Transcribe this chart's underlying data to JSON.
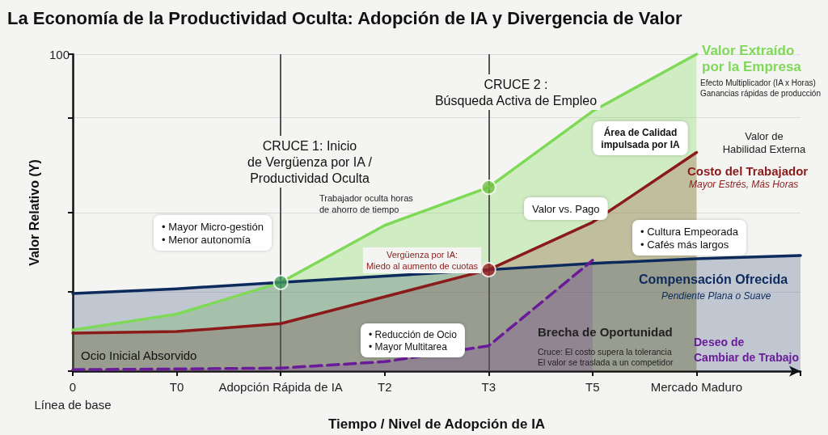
{
  "chart_data": {
    "type": "area",
    "title": "La Economía de la Productividad Oculta: Adopción de IA y Divergencia de Valor",
    "xlabel": "Tiempo / Nivel de Adopción de IA",
    "ylabel": "Valor Relativo (Y)",
    "categories": [
      "0\nLínea de base",
      "T0",
      "Adopción Rápida de IA",
      "T2",
      "T3",
      "T5",
      "Mercado Maduro",
      null
    ],
    "ylim": [
      0,
      100
    ],
    "yticks": [
      {
        "value": 0,
        "label": null
      },
      {
        "value": 25,
        "label": null
      },
      {
        "value": 50,
        "label": null
      },
      {
        "value": 80,
        "label": null
      },
      {
        "value": 100,
        "label": "100"
      }
    ],
    "grid": "y",
    "legend": false,
    "marker": "none",
    "series": [
      {
        "name": "Valor Extraído\npor la Empresa",
        "color": "#7ed957",
        "values": [
          13,
          18,
          28,
          46,
          58,
          82,
          100,
          null
        ]
      },
      {
        "name": "Costo del Trabajador",
        "color": "#8b1a1a",
        "values": [
          12,
          12.5,
          15,
          23.5,
          32,
          47,
          69,
          null
        ]
      },
      {
        "name": "Compensación Ofrecida",
        "color": "#0d2a5c",
        "values": [
          24.5,
          26,
          28,
          30,
          32,
          34,
          35.5,
          36.5
        ]
      },
      {
        "name": "Deseo de\nCambiar de Trabajo",
        "color": "#6a1b9a",
        "line_style": "dashed",
        "values": [
          0.5,
          0.7,
          1,
          3,
          8,
          35,
          null,
          null
        ]
      },
      {
        "type": "scatter",
        "marker": "circle",
        "x": [
          "Adopción Rápida de IA",
          "T3",
          "T3"
        ],
        "values": [
          28,
          58,
          32
        ],
        "colors": [
          "#3f9a5a",
          "#6fbf40",
          "#9b2020"
        ]
      }
    ],
    "ref_lines": [
      {
        "axis": "x",
        "value": "Adopción Rápida de IA",
        "color": "#555555"
      },
      {
        "axis": "x",
        "value": "T3",
        "color": "#555555"
      }
    ],
    "annotations": [
      "CRUCE 1: Inicio\nde Vergüenza por IA /\nProductividad Oculta",
      "CRUCE 2 :\nBúsqueda Activa de Empleo",
      "Trabajador oculta horas\nde ahorro de tiempo",
      "• Mayor Micro-gestión\n• Menor autonomía",
      "Vergüenza por IA:\nMiedo al aumento de cuotas",
      "Valor vs. Pago",
      "Área de Calidad\nimpulsada por IA",
      "Valor de\nHabilidad Externa",
      "• Cultura Empeorada\n• Cafés más largos",
      "• Reducción de Ocio\n• Mayor Multitarea",
      "Ocio Inicial Absorvido",
      "Brecha de Oportunidad",
      "Cruce: El costo supera la tolerancia\nEl valor se traslada a un competidor",
      "Efecto Multiplicador (IA x Horas)\nGanancias rápidas de producción",
      "Mayor Estrés, Más Horas",
      "Pendiente Plana o Suave"
    ]
  }
}
